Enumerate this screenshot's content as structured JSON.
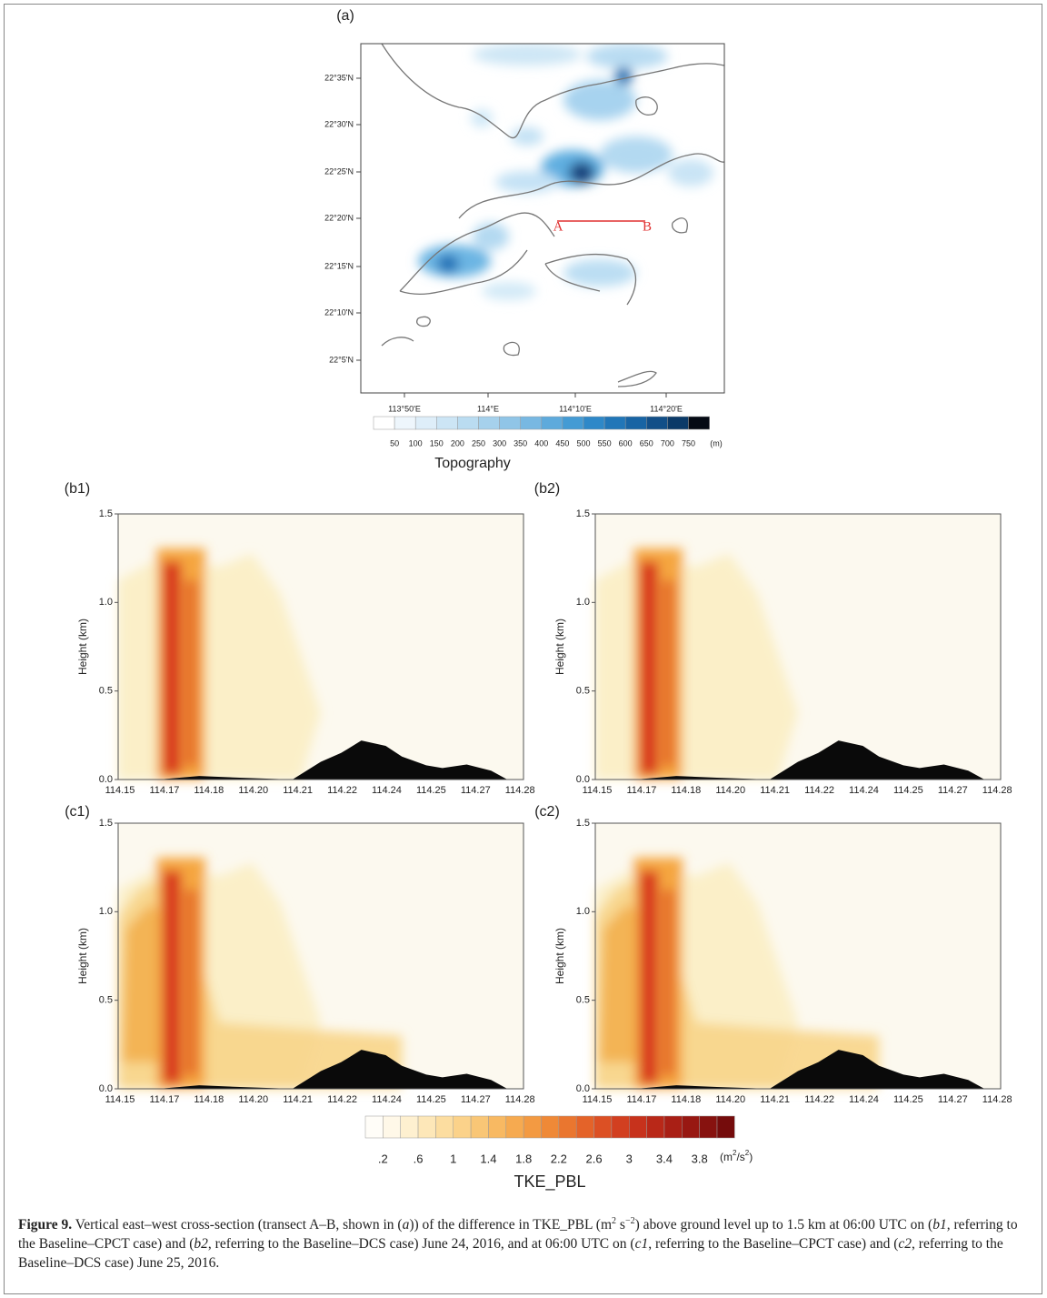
{
  "figure": {
    "map": {
      "label": "(a)",
      "lat_labels": [
        "22°35'N",
        "22°30'N",
        "22°25'N",
        "22°20'N",
        "22°15'N",
        "22°10'N",
        "22°5'N"
      ],
      "lon_labels": [
        "113°50'E",
        "114°E",
        "114°10'E",
        "114°20'E"
      ],
      "point_labels": [
        "A",
        "B"
      ],
      "colorbar_labels": [
        "50",
        "100",
        "150",
        "200",
        "250",
        "300",
        "350",
        "400",
        "450",
        "500",
        "550",
        "600",
        "650",
        "700",
        "750"
      ],
      "colorbar_unit": "(m)",
      "title": "Topography"
    },
    "panels": [
      {
        "label": "(b1)",
        "ylabel": "Height (km)",
        "yticks": [
          "0.0",
          "0.5",
          "1.0",
          "1.5"
        ],
        "xticks": [
          "114.15",
          "114.17",
          "114.18",
          "114.20",
          "114.21",
          "114.22",
          "114.24",
          "114.25",
          "114.27",
          "114.28"
        ]
      },
      {
        "label": "(b2)",
        "ylabel": "Height (km)",
        "yticks": [
          "0.0",
          "0.5",
          "1.0",
          "1.5"
        ],
        "xticks": [
          "114.15",
          "114.17",
          "114.18",
          "114.20",
          "114.21",
          "114.22",
          "114.24",
          "114.25",
          "114.27",
          "114.28"
        ]
      },
      {
        "label": "(c1)",
        "ylabel": "Height (km)",
        "yticks": [
          "0.0",
          "0.5",
          "1.0",
          "1.5"
        ],
        "xticks": [
          "114.15",
          "114.17",
          "114.18",
          "114.20",
          "114.21",
          "114.22",
          "114.24",
          "114.25",
          "114.27",
          "114.28"
        ]
      },
      {
        "label": "(c2)",
        "ylabel": "Height (km)",
        "yticks": [
          "0.0",
          "0.5",
          "1.0",
          "1.5"
        ],
        "xticks": [
          "114.15",
          "114.17",
          "114.18",
          "114.20",
          "114.21",
          "114.22",
          "114.24",
          "114.25",
          "114.27",
          "114.28"
        ]
      }
    ],
    "tke_colorbar": {
      "labels": [
        ".2",
        ".6",
        "1",
        "1.4",
        "1.8",
        "2.2",
        "2.6",
        "3",
        "3.4",
        "3.8"
      ],
      "unit": [
        "(m",
        "2",
        "/s",
        "2",
        ")"
      ],
      "title": "TKE_PBL"
    },
    "caption": [
      "Figure 9.",
      " Vertical east–west cross-section (transect A–B, shown in (",
      "a",
      ")) of the difference in TKE_PBL (m",
      "2",
      " s",
      "−2",
      ") above ground level up to 1.5 km at 06:00 UTC on (",
      "b1",
      ", referring to the Baseline–CPCT case) and (",
      "b2",
      ", referring to the Baseline–DCS case) June 24, 2016, and at 06:00 UTC on (",
      "c1",
      ", referring to the Baseline–CPCT case) and (",
      "c2",
      ", referring to the Baseline–DCS case) June 25, 2016."
    ]
  }
}
